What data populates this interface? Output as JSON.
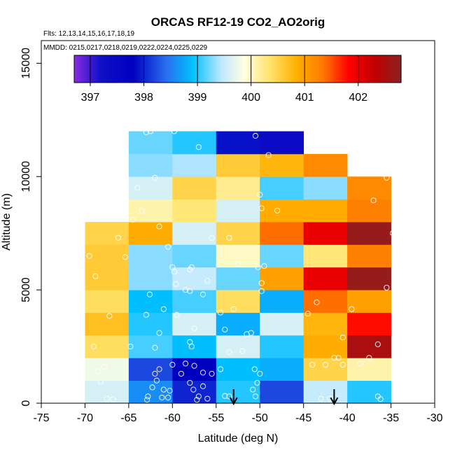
{
  "chart_data": {
    "type": "heatmap",
    "title": "ORCAS RF12-19 CO2_AO2orig",
    "flights_label": "Flts: 12,13,14,15,16,17,18,19",
    "dates_label": "MMDD: 0215,0217,0218,0219,0222,0224,0225,0229",
    "xlabel": "Latitude (deg N)",
    "ylabel": "Altitude (m)",
    "xlim": [
      -75,
      -30
    ],
    "ylim": [
      0,
      16000
    ],
    "x_ticks": [
      -75,
      -70,
      -65,
      -60,
      -55,
      -50,
      -45,
      -40,
      -35,
      -30
    ],
    "y_ticks": [
      0,
      5000,
      10000,
      15000
    ],
    "colorbar": {
      "range": [
        396.7,
        402.8
      ],
      "ticks": [
        397,
        398,
        399,
        400,
        401,
        402
      ]
    },
    "cell_width_deg": 5,
    "cell_height_m": 1000,
    "lat_bins": [
      -70,
      -65,
      -60,
      -55,
      -50,
      -45,
      -40
    ],
    "cells": [
      {
        "lat": -70,
        "values": [
          399.6,
          399.8,
          400.4,
          400.7,
          400.4,
          400.6,
          400.6,
          400.5
        ]
      },
      {
        "lat": -65,
        "values": [
          398.6,
          398.2,
          399.1,
          399.0,
          398.9,
          399.3,
          399.3,
          400.9,
          400.1,
          399.6,
          399.3,
          399.2
        ]
      },
      {
        "lat": -60,
        "values": [
          398.0,
          397.8,
          398.9,
          399.6,
          399.1,
          399.5,
          399.2,
          399.6,
          400.3,
          400.5,
          399.4,
          399.0
        ]
      },
      {
        "lat": -55,
        "values": [
          399.0,
          398.9,
          399.6,
          398.8,
          400.4,
          399.2,
          400.0,
          400.5,
          399.6,
          400.2,
          400.6,
          397.9
        ]
      },
      {
        "lat": -50,
        "values": [
          398.2,
          398.8,
          399.0,
          399.6,
          398.8,
          401.0,
          399.2,
          401.4,
          400.9,
          399.1,
          400.8,
          397.4
        ]
      },
      {
        "lat": -45,
        "values": [
          399.5,
          400.5,
          400.9,
          400.8,
          401.4,
          402.0,
          400.3,
          402.0,
          400.9,
          399.3,
          401.2
        ]
      },
      {
        "lat": -40,
        "values": [
          399.0,
          400.1,
          402.5,
          401.8,
          401.0,
          402.7,
          401.3,
          402.7,
          401.3,
          401.2
        ]
      }
    ],
    "sample_points": [
      [
        -67.5,
        200
      ],
      [
        -66.8,
        180
      ],
      [
        -68.2,
        950
      ],
      [
        -68.5,
        1400
      ],
      [
        -67.8,
        1600
      ],
      [
        -69.0,
        2500
      ],
      [
        -67.2,
        3850
      ],
      [
        -68.8,
        5600
      ],
      [
        -69.5,
        6500
      ],
      [
        -66.2,
        7300
      ],
      [
        -65.4,
        6450
      ],
      [
        -63.0,
        11950
      ],
      [
        -62.5,
        12000
      ],
      [
        -62.0,
        9950
      ],
      [
        -64.0,
        9500
      ],
      [
        -63.5,
        8500
      ],
      [
        -64.5,
        8100
      ],
      [
        -61.5,
        7800
      ],
      [
        -64.8,
        2500
      ],
      [
        -62.0,
        2450
      ],
      [
        -63.0,
        3900
      ],
      [
        -62.6,
        4800
      ],
      [
        -62.0,
        1300
      ],
      [
        -61.8,
        1000
      ],
      [
        -62.3,
        700
      ],
      [
        -62.8,
        300
      ],
      [
        -62.9,
        150
      ],
      [
        -61.2,
        250
      ],
      [
        -61.0,
        600
      ],
      [
        -61.5,
        1500
      ],
      [
        -60.5,
        250
      ],
      [
        -60.3,
        550
      ],
      [
        -60.0,
        1700
      ],
      [
        -59.8,
        12000
      ],
      [
        -61.5,
        3100
      ],
      [
        -61.0,
        4150
      ],
      [
        -59.5,
        3900
      ],
      [
        -59.6,
        5250
      ],
      [
        -59.8,
        5800
      ],
      [
        -60.0,
        6000
      ],
      [
        -60.5,
        6900
      ],
      [
        -58.0,
        5900
      ],
      [
        -57.8,
        6000
      ],
      [
        -58.5,
        5000
      ],
      [
        -58.0,
        4950
      ],
      [
        -56.5,
        4800
      ],
      [
        -56.0,
        5400
      ],
      [
        -57.5,
        3300
      ],
      [
        -58.0,
        2700
      ],
      [
        -57.8,
        2500
      ],
      [
        -56.5,
        1350
      ],
      [
        -57.5,
        1650
      ],
      [
        -58.5,
        1750
      ],
      [
        -59.0,
        1300
      ],
      [
        -58.0,
        900
      ],
      [
        -57.6,
        600
      ],
      [
        -57.0,
        300
      ],
      [
        -57.2,
        150
      ],
      [
        -56.0,
        200
      ],
      [
        -56.5,
        750
      ],
      [
        -55.5,
        1300
      ],
      [
        -57.0,
        11300
      ],
      [
        -55.5,
        7300
      ],
      [
        -53.5,
        7300
      ],
      [
        -54.5,
        4000
      ],
      [
        -53.0,
        4150
      ],
      [
        -54.0,
        3250
      ],
      [
        -52.0,
        2300
      ],
      [
        -53.5,
        2250
      ],
      [
        -54.5,
        1500
      ],
      [
        -53.5,
        300
      ],
      [
        -54.0,
        320
      ],
      [
        -52.5,
        6150
      ],
      [
        -51.5,
        3050
      ],
      [
        -51.0,
        3100
      ],
      [
        -50.5,
        300
      ],
      [
        -50.8,
        600
      ],
      [
        -50.3,
        900
      ],
      [
        -50.0,
        1300
      ],
      [
        -50.6,
        1500
      ],
      [
        -49.8,
        4950
      ],
      [
        -49.8,
        5300
      ],
      [
        -50.2,
        6000
      ],
      [
        -49.5,
        6050
      ],
      [
        -50.5,
        11800
      ],
      [
        -49.0,
        10950
      ],
      [
        -50.0,
        9200
      ],
      [
        -49.8,
        8600
      ],
      [
        -48.0,
        8500
      ],
      [
        -44.5,
        3950
      ],
      [
        -43.5,
        4450
      ],
      [
        -44.0,
        1700
      ],
      [
        -42.5,
        1700
      ],
      [
        -43.0,
        200
      ],
      [
        -42.0,
        200
      ],
      [
        -41.0,
        2000
      ],
      [
        -40.5,
        2900
      ],
      [
        -41.5,
        2000
      ],
      [
        -39.5,
        4150
      ],
      [
        -40.5,
        1700
      ],
      [
        -38.5,
        1750
      ],
      [
        -37.0,
        8950
      ],
      [
        -35.5,
        9950
      ],
      [
        -34.8,
        7500
      ],
      [
        -35.5,
        5100
      ],
      [
        -36.5,
        2600
      ],
      [
        -37.5,
        2000
      ],
      [
        -36.5,
        300
      ],
      [
        -36.2,
        180
      ]
    ],
    "arrows": [
      -53,
      -41.5
    ]
  }
}
